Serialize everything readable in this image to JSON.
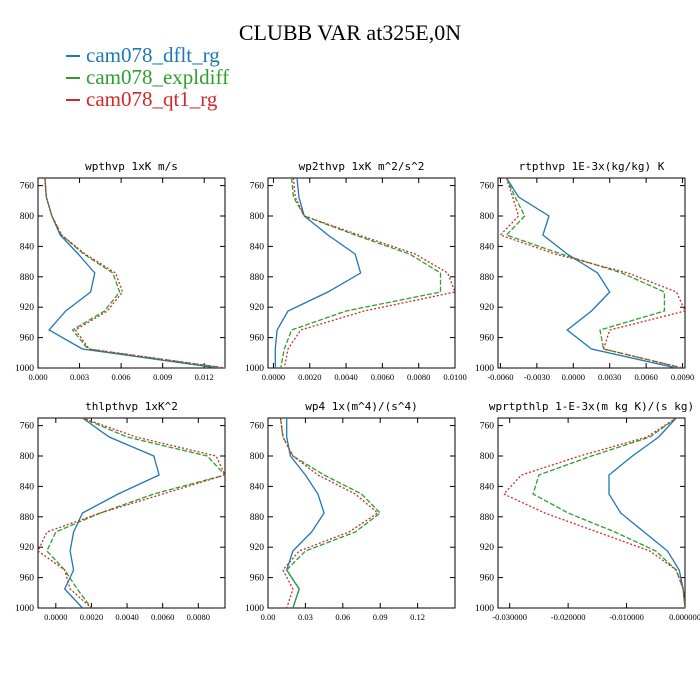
{
  "title": "CLUBB VAR at325E,0N",
  "legend": [
    {
      "label": "cam078_dflt_rg",
      "color": "#1f77b4"
    },
    {
      "label": "cam078_expldiff",
      "color": "#2ca02c"
    },
    {
      "label": "cam078_qt1_rg",
      "color": "#d62728"
    }
  ],
  "chart_data": [
    {
      "type": "line",
      "title": "wpthvp  1xK m/s",
      "y": [
        750,
        775,
        800,
        825,
        850,
        875,
        900,
        925,
        950,
        975,
        1000
      ],
      "ylim": [
        750,
        1000
      ],
      "yticks": [
        760,
        800,
        840,
        880,
        920,
        960,
        1000
      ],
      "y_inverted": true,
      "xlim": [
        0.0,
        0.0135
      ],
      "xticks": [
        "0.000",
        "0.003",
        "0.006",
        "0.009",
        "0.012"
      ],
      "xtick_values": [
        0.0,
        0.003,
        0.006,
        0.009,
        0.012
      ],
      "series": [
        {
          "values": [
            0.0005,
            0.0006,
            0.001,
            0.0016,
            0.0029,
            0.0041,
            0.0038,
            0.002,
            0.0008,
            0.0032,
            0.013
          ]
        },
        {
          "values": [
            0.0005,
            0.0006,
            0.001,
            0.0017,
            0.0033,
            0.0054,
            0.0059,
            0.0048,
            0.0025,
            0.0036,
            0.0135
          ]
        },
        {
          "values": [
            0.0005,
            0.0006,
            0.001,
            0.0017,
            0.0034,
            0.0056,
            0.0061,
            0.005,
            0.0027,
            0.0037,
            0.0135
          ]
        }
      ]
    },
    {
      "type": "line",
      "title": "wp2thvp  1xK m^2/s^2",
      "y": [
        750,
        775,
        800,
        825,
        850,
        875,
        900,
        925,
        950,
        975,
        1000
      ],
      "ylim": [
        750,
        1000
      ],
      "yticks": [
        760,
        800,
        840,
        880,
        920,
        960,
        1000
      ],
      "y_inverted": true,
      "xlim": [
        -0.0003,
        0.01
      ],
      "xticks": [
        "0.0000",
        "0.0020",
        "0.0040",
        "0.0060",
        "0.0080",
        "0.0100"
      ],
      "xtick_values": [
        0.0,
        0.002,
        0.004,
        0.006,
        0.008,
        0.01
      ],
      "series": [
        {
          "values": [
            0.0013,
            0.0014,
            0.0017,
            0.003,
            0.0045,
            0.0048,
            0.003,
            0.0008,
            0.0002,
            0.0001,
            0.0001
          ]
        },
        {
          "values": [
            0.001,
            0.0011,
            0.0017,
            0.0045,
            0.0075,
            0.0092,
            0.0092,
            0.004,
            0.001,
            0.0006,
            0.0004
          ]
        },
        {
          "values": [
            0.0011,
            0.0012,
            0.0017,
            0.0047,
            0.0078,
            0.0096,
            0.01,
            0.005,
            0.0015,
            0.0008,
            0.0006
          ]
        }
      ]
    },
    {
      "type": "line",
      "title": "rtpthvp  1E-3x(kg/kg) K",
      "y": [
        750,
        775,
        800,
        825,
        850,
        875,
        900,
        925,
        950,
        975,
        1000
      ],
      "ylim": [
        750,
        1000
      ],
      "yticks": [
        760,
        800,
        840,
        880,
        920,
        960,
        1000
      ],
      "y_inverted": true,
      "xlim": [
        -0.0062,
        0.0092
      ],
      "xticks": [
        "-0.0060",
        "-0.0030",
        "0.0000",
        "0.0030",
        "0.0060",
        "0.0090"
      ],
      "xtick_values": [
        -0.006,
        -0.003,
        0.0,
        0.003,
        0.006,
        0.009
      ],
      "series": [
        {
          "values": [
            -0.0055,
            -0.0045,
            -0.002,
            -0.0025,
            -0.0005,
            0.002,
            0.003,
            0.0015,
            -0.0005,
            0.0015,
            0.0085
          ]
        },
        {
          "values": [
            -0.0055,
            -0.0048,
            -0.004,
            -0.0055,
            -0.001,
            0.004,
            0.0075,
            0.0075,
            0.0022,
            0.0025,
            0.009
          ]
        },
        {
          "values": [
            -0.0055,
            -0.005,
            -0.0045,
            -0.006,
            -0.0015,
            0.0045,
            0.0085,
            0.0092,
            0.003,
            0.0025,
            0.009
          ]
        }
      ]
    },
    {
      "type": "line",
      "title": "thlpthvp  1xK^2",
      "y": [
        750,
        775,
        800,
        825,
        850,
        875,
        900,
        925,
        950,
        975,
        1000
      ],
      "ylim": [
        750,
        1000
      ],
      "yticks": [
        760,
        800,
        840,
        880,
        920,
        960,
        1000
      ],
      "y_inverted": true,
      "xlim": [
        -0.001,
        0.0095
      ],
      "xticks": [
        "0.0000",
        "0.0020",
        "0.0040",
        "0.0060",
        "0.0080"
      ],
      "xtick_values": [
        0.0,
        0.002,
        0.004,
        0.006,
        0.008
      ],
      "series": [
        {
          "values": [
            0.0015,
            0.003,
            0.0055,
            0.0058,
            0.0035,
            0.0015,
            0.001,
            0.0008,
            0.001,
            0.0005,
            0.0015
          ]
        },
        {
          "values": [
            0.0015,
            0.004,
            0.0085,
            0.0095,
            0.0055,
            0.0025,
            0.0,
            -0.0005,
            0.0005,
            0.0012,
            0.002
          ]
        },
        {
          "values": [
            0.0015,
            0.0045,
            0.009,
            0.0095,
            0.006,
            0.0025,
            -0.0005,
            -0.001,
            0.0005,
            0.0008,
            0.002
          ]
        }
      ]
    },
    {
      "type": "line",
      "title": "wp4  1x(m^4)/(s^4)",
      "y": [
        750,
        775,
        800,
        825,
        850,
        875,
        900,
        925,
        950,
        975,
        1000
      ],
      "ylim": [
        750,
        1000
      ],
      "yticks": [
        760,
        800,
        840,
        880,
        920,
        960,
        1000
      ],
      "y_inverted": true,
      "xlim": [
        0.0,
        0.15
      ],
      "xticks": [
        "0.00",
        "0.03",
        "0.06",
        "0.09",
        "0.12"
      ],
      "xtick_values": [
        0.0,
        0.03,
        0.06,
        0.09,
        0.12
      ],
      "series": [
        {
          "values": [
            0.015,
            0.015,
            0.018,
            0.03,
            0.04,
            0.045,
            0.035,
            0.02,
            0.015,
            0.025,
            0.02
          ]
        },
        {
          "values": [
            0.01,
            0.012,
            0.02,
            0.045,
            0.075,
            0.09,
            0.07,
            0.03,
            0.015,
            0.025,
            0.02
          ]
        },
        {
          "values": [
            0.01,
            0.012,
            0.02,
            0.04,
            0.07,
            0.088,
            0.065,
            0.025,
            0.012,
            0.02,
            0.015
          ]
        }
      ]
    },
    {
      "type": "line",
      "title": "wprtpthlp  1-E-3x(m kg K)/(s kg)",
      "y": [
        750,
        775,
        800,
        825,
        850,
        875,
        900,
        925,
        950,
        975,
        1000
      ],
      "ylim": [
        750,
        1000
      ],
      "yticks": [
        760,
        800,
        840,
        880,
        920,
        960,
        1000
      ],
      "y_inverted": true,
      "xlim": [
        -0.032,
        0.0
      ],
      "xticks": [
        "-0.030000",
        "-0.020000",
        "-0.010000",
        "0.000000"
      ],
      "xtick_values": [
        -0.03,
        -0.02,
        -0.01,
        0.0
      ],
      "series": [
        {
          "values": [
            -0.0015,
            -0.0045,
            -0.009,
            -0.013,
            -0.013,
            -0.011,
            -0.007,
            -0.003,
            -0.001,
            -0.0003,
            0.0
          ]
        },
        {
          "values": [
            -0.0015,
            -0.006,
            -0.016,
            -0.025,
            -0.026,
            -0.02,
            -0.012,
            -0.005,
            -0.0015,
            -0.0003,
            0.0
          ]
        },
        {
          "values": [
            -0.0015,
            -0.0065,
            -0.018,
            -0.028,
            -0.031,
            -0.024,
            -0.015,
            -0.006,
            -0.0015,
            -0.0003,
            0.0
          ]
        }
      ]
    }
  ]
}
